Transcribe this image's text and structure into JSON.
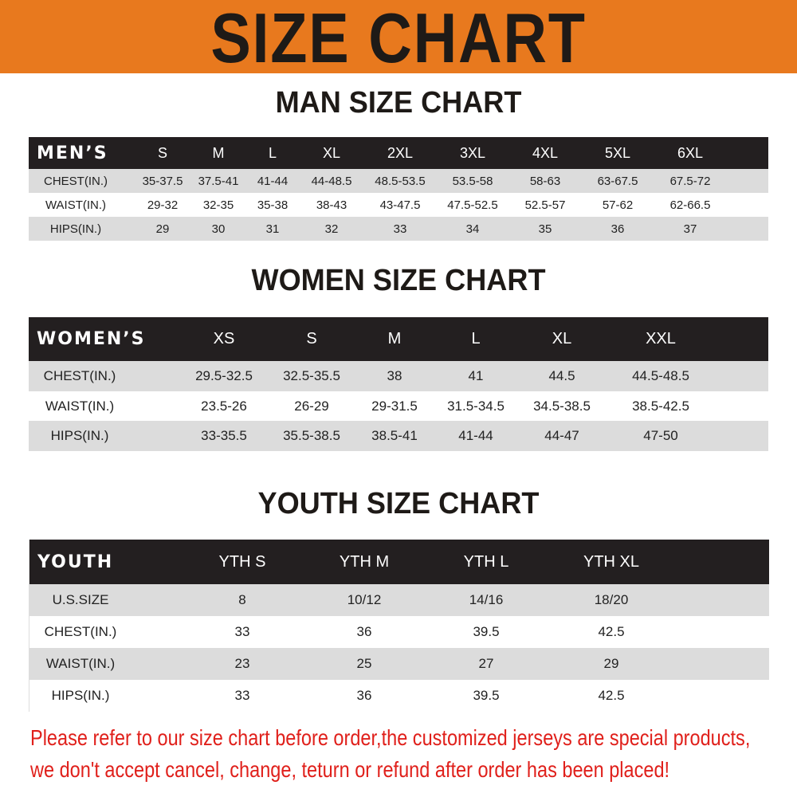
{
  "banner": {
    "title": "SIZE CHART",
    "color": "#e8791e"
  },
  "men": {
    "title": "MAN SIZE CHART",
    "headers": [
      "MEN’S",
      "S",
      "M",
      "L",
      "XL",
      "2XL",
      "3XL",
      "4XL",
      "5XL",
      "6XL"
    ],
    "rows": [
      [
        "CHEST(IN.)",
        "35-37.5",
        "37.5-41",
        "41-44",
        "44-48.5",
        "48.5-53.5",
        "53.5-58",
        "58-63",
        "63-67.5",
        "67.5-72"
      ],
      [
        "WAIST(IN.)",
        "29-32",
        "32-35",
        "35-38",
        "38-43",
        "43-47.5",
        "47.5-52.5",
        "52.5-57",
        "57-62",
        "62-66.5"
      ],
      [
        "HIPS(IN.)",
        "29",
        "30",
        "31",
        "32",
        "33",
        "34",
        "35",
        "36",
        "37"
      ]
    ]
  },
  "women": {
    "title": "WOMEN SIZE CHART",
    "headers": [
      "WOMEN’S",
      "XS",
      "S",
      "M",
      "L",
      "XL",
      "XXL"
    ],
    "rows": [
      [
        "CHEST(IN.)",
        "29.5-32.5",
        "32.5-35.5",
        "38",
        "41",
        "44.5",
        "44.5-48.5"
      ],
      [
        "WAIST(IN.)",
        "23.5-26",
        "26-29",
        "29-31.5",
        "31.5-34.5",
        "34.5-38.5",
        "38.5-42.5"
      ],
      [
        "HIPS(IN.)",
        "33-35.5",
        "35.5-38.5",
        "38.5-41",
        "41-44",
        "44-47",
        "47-50"
      ]
    ]
  },
  "youth": {
    "title": "YOUTH SIZE CHART",
    "headers": [
      "YOUTH",
      "YTH S",
      "YTH M",
      "YTH L",
      "YTH XL"
    ],
    "rows": [
      [
        "U.S.SIZE",
        "8",
        "10/12",
        "14/16",
        "18/20"
      ],
      [
        "CHEST(IN.)",
        "33",
        "36",
        "39.5",
        "42.5"
      ],
      [
        "WAIST(IN.)",
        "23",
        "25",
        "27",
        "29"
      ],
      [
        "HIPS(IN.)",
        "33",
        "36",
        "39.5",
        "42.5"
      ]
    ]
  },
  "notice": {
    "line1": "Please refer to our size chart before order,the customized jerseys are special products,",
    "line2": "we don't accept cancel, change, teturn or refund after order has been placed!",
    "color": "#e0201b"
  }
}
